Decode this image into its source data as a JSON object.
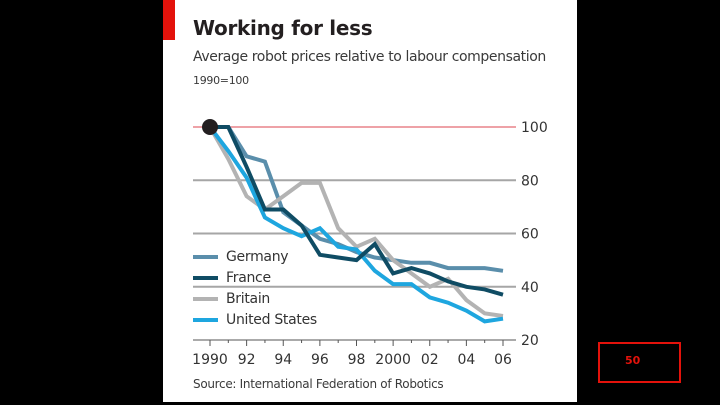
{
  "chart_data": {
    "type": "line",
    "title": "Working for less",
    "subtitle": "Average robot prices relative to labour compensation",
    "unit_note": "1990=100",
    "source": "Source: International Federation of Robotics",
    "xlabel": "",
    "ylabel": "",
    "x": [
      1990,
      1991,
      1992,
      1993,
      1994,
      1995,
      1996,
      1997,
      1998,
      1999,
      2000,
      2001,
      2002,
      2003,
      2004,
      2005,
      2006
    ],
    "x_tick_labels": [
      {
        "year": 1990,
        "label": "1990"
      },
      {
        "year": 1992,
        "label": "92"
      },
      {
        "year": 1994,
        "label": "94"
      },
      {
        "year": 1996,
        "label": "96"
      },
      {
        "year": 1998,
        "label": "98"
      },
      {
        "year": 2000,
        "label": "2000"
      },
      {
        "year": 2002,
        "label": "02"
      },
      {
        "year": 2004,
        "label": "04"
      },
      {
        "year": 2006,
        "label": "06"
      }
    ],
    "y_ticks": [
      20,
      40,
      60,
      80,
      100
    ],
    "y_tick_labels": [
      "20",
      "40",
      "60",
      "80",
      "100"
    ],
    "ylim": [
      20,
      100
    ],
    "xlim": [
      1990,
      2006
    ],
    "grid": true,
    "highlight_gridline": 100,
    "legend_position": "bottom-left",
    "series": [
      {
        "name": "Germany",
        "color": "#5a8eab",
        "values": [
          100,
          100,
          89,
          87,
          68,
          63,
          58,
          56,
          53,
          51,
          50,
          49,
          49,
          47,
          47,
          47,
          46
        ]
      },
      {
        "name": "France",
        "color": "#0f4c64",
        "values": [
          100,
          100,
          85,
          69,
          69,
          63,
          52,
          51,
          50,
          56,
          45,
          47,
          45,
          42,
          40,
          39,
          37
        ]
      },
      {
        "name": "Britain",
        "color": "#b3b3b3",
        "values": [
          100,
          88,
          74,
          69,
          74,
          79,
          79,
          62,
          55,
          58,
          50,
          45,
          40,
          43,
          35,
          30,
          29
        ]
      },
      {
        "name": "United States",
        "color": "#1ea6df",
        "values": [
          100,
          91,
          81,
          66,
          62,
          59,
          62,
          55,
          54,
          46,
          41,
          41,
          36,
          34,
          31,
          27,
          28
        ]
      }
    ],
    "annotations": [
      {
        "type": "dot",
        "x": 1990,
        "y": 100
      }
    ]
  },
  "colors": {
    "accent": "#e3120b",
    "gridline": "#a6a6a6",
    "highlight_gridline": "#e8848a"
  },
  "page": {
    "number": "50"
  }
}
